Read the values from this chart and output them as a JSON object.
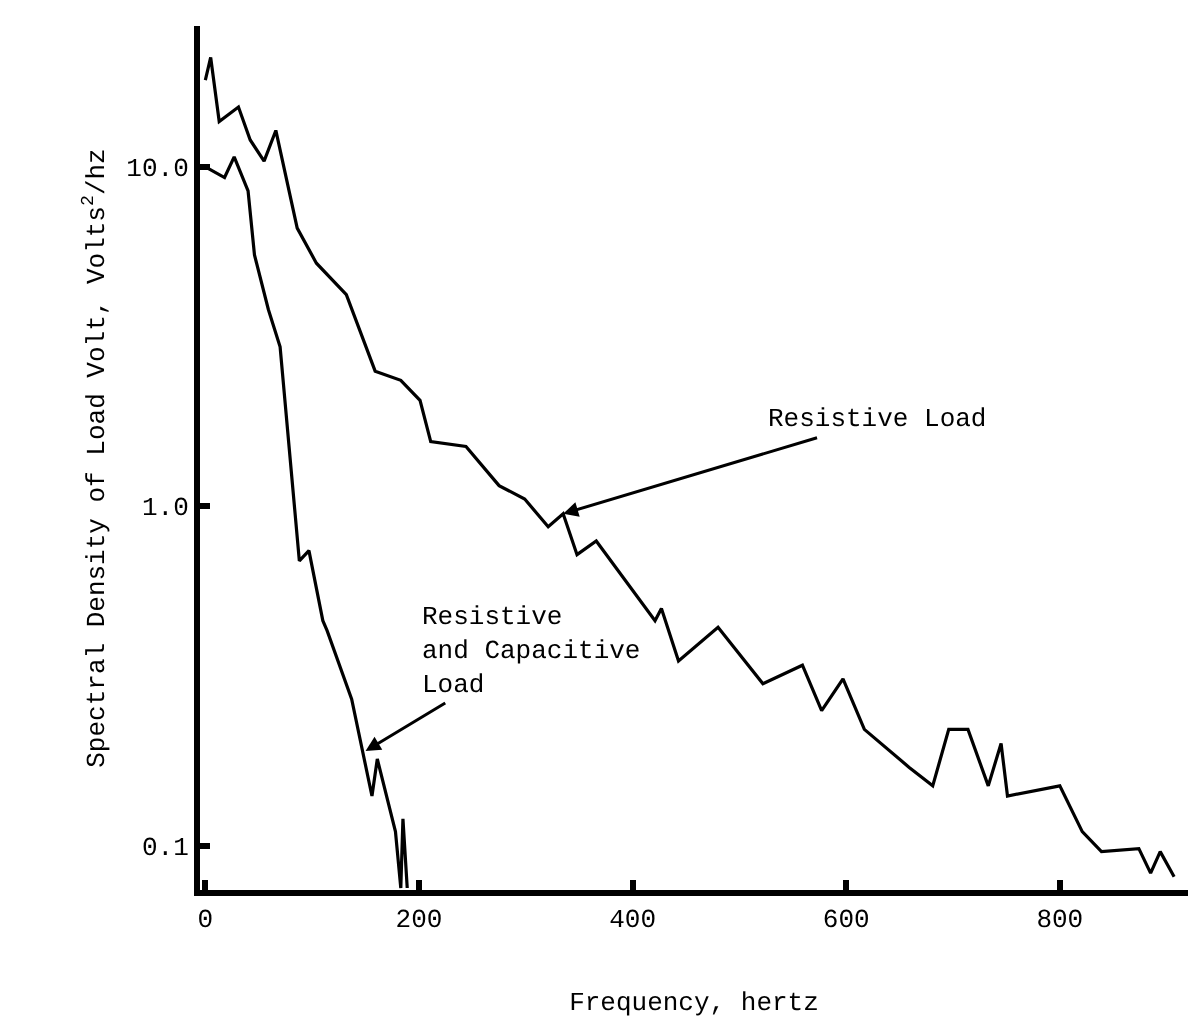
{
  "chart_data": {
    "type": "line",
    "xlabel": "Frequency, hertz",
    "ylabel": "Spectral Density of Load Volt, Volts$^{2}$/hz",
    "log": "y",
    "marker": "none",
    "line_style": "solid",
    "xlim": [
      -5,
      920
    ],
    "xticks": [
      0,
      200,
      400,
      600,
      800
    ],
    "ylim": [
      0.074,
      26
    ],
    "yticks": [
      {
        "value": 0.1,
        "label": "0.1"
      },
      {
        "value": 1,
        "label": "1.0"
      },
      {
        "value": 10,
        "label": "10.0"
      }
    ],
    "series": [
      {
        "color": "#000000",
        "x": [
          0,
          5,
          13,
          31,
          42,
          55,
          66,
          86,
          104,
          132,
          159,
          183,
          201,
          211,
          244,
          275,
          299,
          321,
          335,
          348,
          366,
          421,
          427,
          443,
          480,
          522,
          559,
          577,
          597,
          617,
          659,
          681,
          696,
          714,
          733,
          745,
          751,
          800,
          821,
          839,
          874,
          885,
          894,
          907
        ],
        "values": [
          18,
          21,
          13.6,
          15,
          12,
          10.4,
          12.8,
          6.6,
          5.2,
          4.2,
          2.5,
          2.35,
          2.05,
          1.55,
          1.5,
          1.15,
          1.05,
          0.87,
          0.95,
          0.72,
          0.79,
          0.46,
          0.5,
          0.35,
          0.44,
          0.3,
          0.34,
          0.25,
          0.31,
          0.22,
          0.17,
          0.15,
          0.22,
          0.22,
          0.15,
          0.2,
          0.14,
          0.15,
          0.11,
          0.096,
          0.098,
          0.083,
          0.096,
          0.081
        ]
      },
      {
        "color": "#000000",
        "x": [
          0,
          18,
          27,
          40,
          46,
          59,
          70,
          88,
          97,
          110,
          114,
          137,
          156,
          161,
          178,
          183,
          185,
          189
        ],
        "values": [
          10,
          9.3,
          10.7,
          8.5,
          5.5,
          3.8,
          2.95,
          0.69,
          0.74,
          0.46,
          0.43,
          0.27,
          0.14,
          0.18,
          0.11,
          0.075,
          0.12,
          0.075
        ]
      }
    ],
    "annotations": [
      {
        "text": "Resistive Load",
        "x": 335,
        "y": 0.95
      },
      {
        "text": "Resistive\nand Capacitive\nLoad",
        "x": 150,
        "y": 0.19
      }
    ]
  }
}
